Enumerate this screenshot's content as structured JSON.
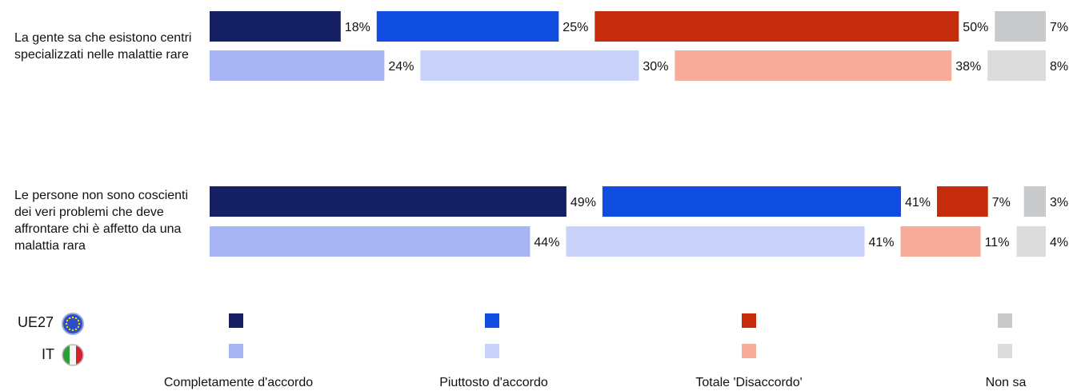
{
  "colors": {
    "UE27": [
      "#142063",
      "#0e4de0",
      "#c52c0c",
      "#c8c9cb"
    ],
    "IT": [
      "#a8b5f5",
      "#c8d2fb",
      "#f7ab99",
      "#dcdcdc"
    ]
  },
  "chart_data": {
    "type": "bar",
    "orientation": "horizontal",
    "stacked": true,
    "categories": [
      "La gente sa che esistono centri specializzati nelle malattie rare",
      "Le persone non sono coscienti dei veri problemi che deve affrontare chi è affetto da una malattia rara"
    ],
    "series": [
      {
        "name": "Completamente d'accordo",
        "UE27": [
          18,
          49
        ],
        "IT": [
          24,
          44
        ]
      },
      {
        "name": "Piuttosto d'accordo",
        "UE27": [
          25,
          41
        ],
        "IT": [
          30,
          41
        ]
      },
      {
        "name": "Totale 'Disaccordo'",
        "UE27": [
          50,
          7
        ],
        "IT": [
          38,
          11
        ]
      },
      {
        "name": "Non sa",
        "UE27": [
          7,
          3
        ],
        "IT": [
          8,
          4
        ]
      }
    ],
    "groups": [
      "UE27",
      "IT"
    ],
    "unit": "%"
  },
  "legend": {
    "countries": [
      "UE27",
      "IT"
    ]
  }
}
